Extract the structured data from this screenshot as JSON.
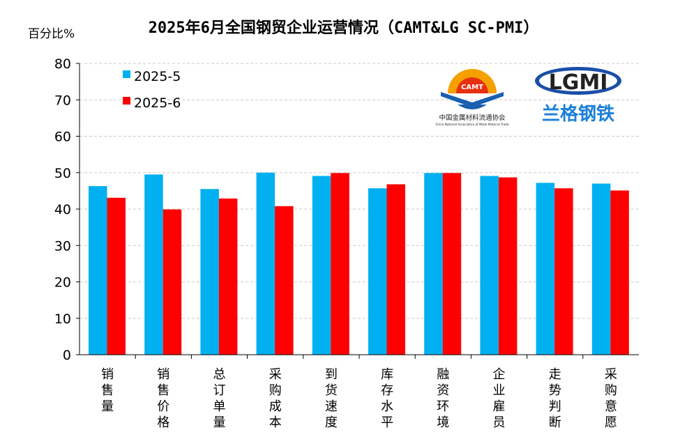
{
  "chart_data": {
    "type": "bar",
    "title": "2025年6月全国钢贸企业运营情况（CAMT&LG SC-PMI）",
    "ylabel": "百分比%",
    "xlabel": "",
    "ylim": [
      0,
      80
    ],
    "yticks": [
      0,
      10,
      20,
      30,
      40,
      50,
      60,
      70,
      80
    ],
    "grid": true,
    "legend": "top-left",
    "categories": [
      "销售量",
      "销售价格",
      "总订单量",
      "采购成本",
      "到货速度",
      "库存水平",
      "融资环境",
      "企业雇员",
      "走势判断",
      "采购意愿"
    ],
    "series": [
      {
        "name": "2025-5",
        "color": "#00B0F0",
        "values": [
          46.3,
          49.5,
          45.5,
          50.0,
          49.1,
          45.7,
          49.9,
          49.1,
          47.2,
          47.0
        ]
      },
      {
        "name": "2025-6",
        "color": "#FF0000",
        "values": [
          43.1,
          39.9,
          42.9,
          40.8,
          49.9,
          46.8,
          49.9,
          48.7,
          45.7,
          45.1
        ]
      }
    ]
  },
  "logos": {
    "camt": {
      "mark": "CAMT",
      "name_cn": "中国金属材料流通协会",
      "name_en": "China National Association of Metal Material Trade"
    },
    "lgmi": {
      "mark": "LGMI",
      "name_cn": "兰格钢铁"
    }
  }
}
